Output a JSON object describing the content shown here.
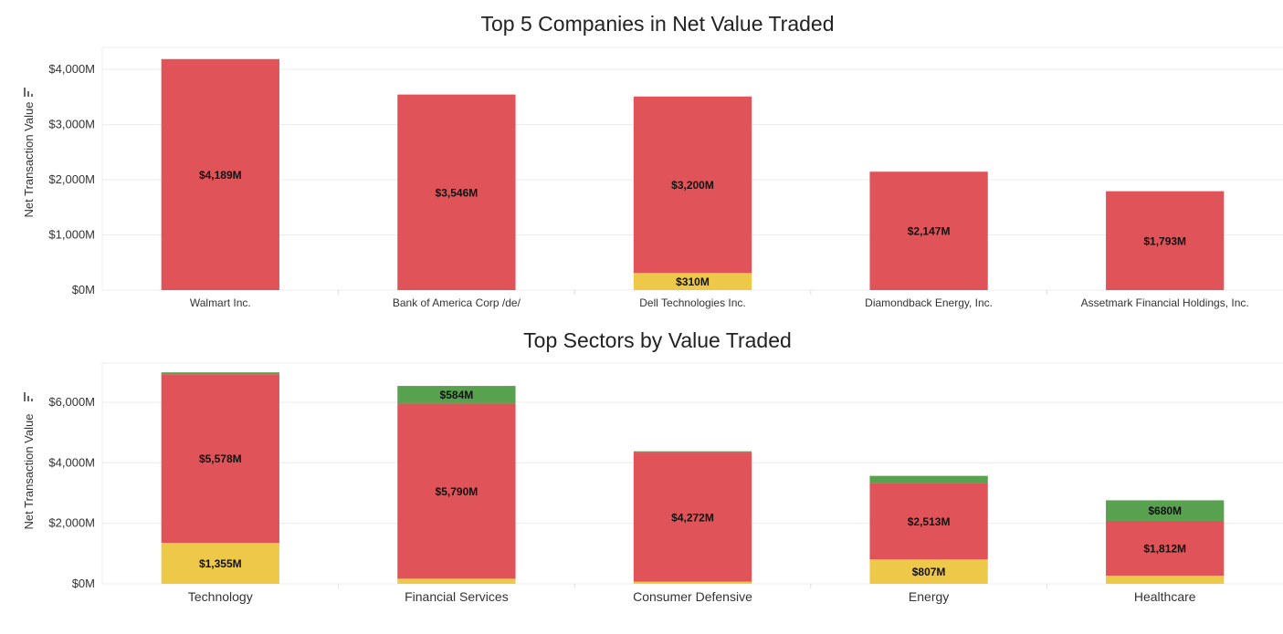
{
  "colors": {
    "red": "#e05459",
    "yellow": "#edc849",
    "green": "#58a14e",
    "grid": "#ececec",
    "axis_text": "#333333",
    "label_text": "#111111"
  },
  "chart_data": [
    {
      "type": "bar",
      "stacked": true,
      "title": "Top 5 Companies in Net Value Traded",
      "ylabel": "Net Transaction Value",
      "xlabel": "",
      "ylim": [
        0,
        4400
      ],
      "yticks": [
        0,
        1000,
        2000,
        3000,
        4000
      ],
      "ytick_labels": [
        "$0M",
        "$1,000M",
        "$2,000M",
        "$3,000M",
        "$4,000M"
      ],
      "categories": [
        "Walmart Inc.",
        "Bank of America Corp /de/",
        "Dell Technologies Inc.",
        "Diamondback Energy, Inc.",
        "Assetmark Financial Holdings, Inc."
      ],
      "grid": true,
      "legend": "none",
      "series": [
        {
          "color_key": "yellow",
          "values": [
            0,
            0,
            310,
            0,
            0
          ],
          "labels": [
            "",
            "",
            "$310M",
            "",
            ""
          ]
        },
        {
          "color_key": "red",
          "values": [
            4189,
            3546,
            3200,
            2147,
            1793
          ],
          "labels": [
            "$4,189M",
            "$3,546M",
            "$3,200M",
            "$2,147M",
            "$1,793M"
          ]
        },
        {
          "color_key": "green",
          "values": [
            0,
            0,
            0,
            0,
            0
          ],
          "labels": [
            "",
            "",
            "",
            "",
            ""
          ]
        }
      ]
    },
    {
      "type": "bar",
      "stacked": true,
      "title": "Top Sectors by Value Traded",
      "ylabel": "Net Transaction Value",
      "xlabel": "",
      "ylim": [
        0,
        7300
      ],
      "yticks": [
        0,
        2000,
        4000,
        6000
      ],
      "ytick_labels": [
        "$0M",
        "$2,000M",
        "$4,000M",
        "$6,000M"
      ],
      "categories": [
        "Technology",
        "Financial Services",
        "Consumer Defensive",
        "Energy",
        "Healthcare"
      ],
      "grid": true,
      "legend": "none",
      "series": [
        {
          "color_key": "yellow",
          "values": [
            1355,
            170,
            70,
            807,
            270
          ],
          "labels": [
            "$1,355M",
            "",
            "",
            "$807M",
            ""
          ]
        },
        {
          "color_key": "red",
          "values": [
            5578,
            5790,
            4272,
            2513,
            1812
          ],
          "labels": [
            "$5,578M",
            "$5,790M",
            "$4,272M",
            "$2,513M",
            "$1,812M"
          ]
        },
        {
          "color_key": "green",
          "values": [
            60,
            584,
            40,
            250,
            680
          ],
          "labels": [
            "",
            "$584M",
            "",
            "",
            "$680M"
          ]
        }
      ]
    }
  ]
}
